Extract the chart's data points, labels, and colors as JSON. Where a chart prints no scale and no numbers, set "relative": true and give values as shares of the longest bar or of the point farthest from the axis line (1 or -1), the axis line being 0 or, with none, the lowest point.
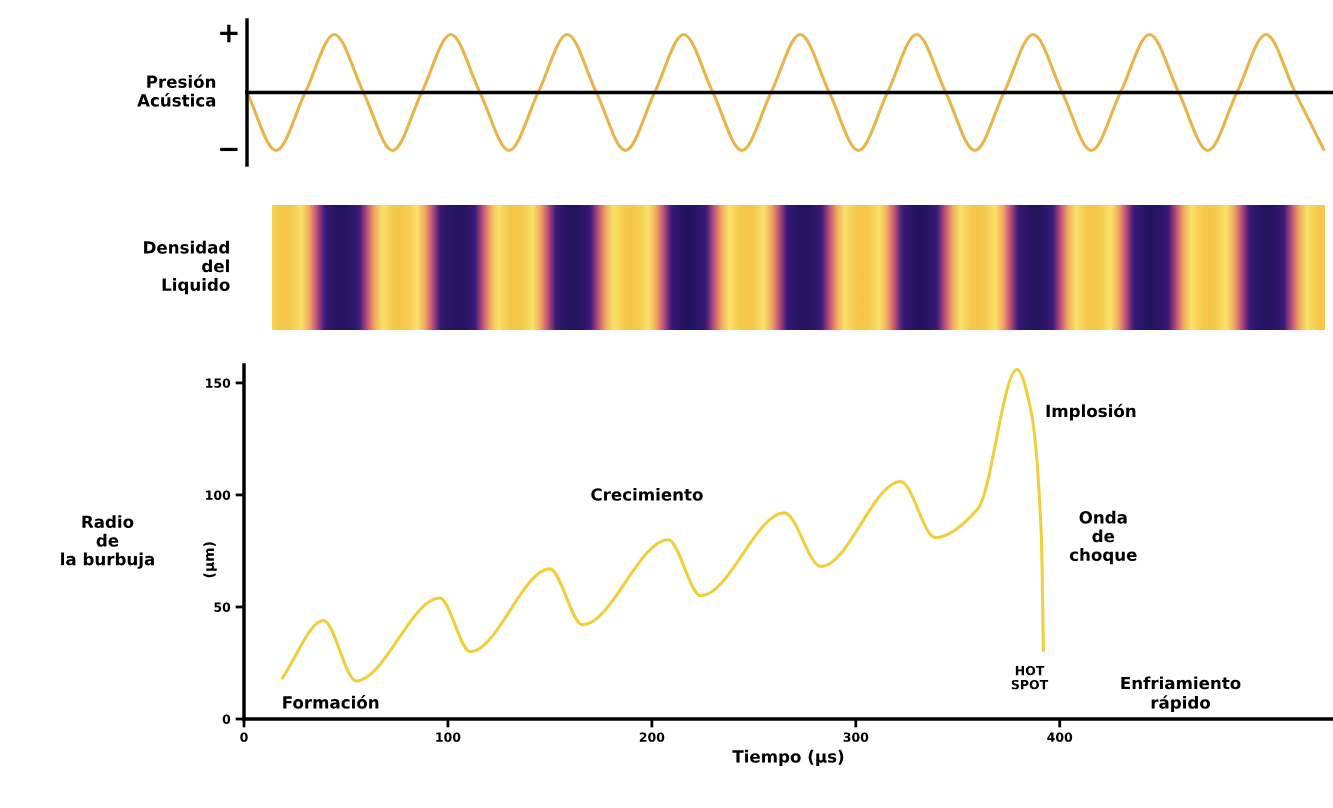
{
  "chart_data": [
    {
      "type": "line",
      "ylabel": "Presión\nAcústica",
      "categories": [
        null,
        null,
        null,
        null,
        null,
        null,
        null,
        null,
        null,
        null,
        null,
        null,
        null,
        null,
        null,
        null,
        null,
        null,
        null,
        null,
        null,
        null,
        null,
        null,
        null,
        null,
        null,
        null,
        null,
        null,
        null,
        null,
        null,
        null,
        null,
        null,
        null,
        null
      ],
      "series": [
        {
          "color": "#e8b44c",
          "values": [
            0,
            -1,
            0,
            1,
            0,
            -1,
            0,
            1,
            0,
            -1,
            0,
            1,
            0,
            -1,
            0,
            1,
            0,
            -1,
            0,
            1,
            0,
            -1,
            0,
            1,
            0,
            -1,
            0,
            1,
            0,
            -1,
            0,
            1,
            0,
            -1,
            0,
            1,
            0,
            -1
          ]
        }
      ],
      "relative": true,
      "annotations": [
        "+",
        "−"
      ],
      "grid": false,
      "legend": false
    },
    {
      "type": "other",
      "ylabel": "Densidad\ndel\nLiquido"
    },
    {
      "type": "line",
      "ylabel": "Radio\nde\nla burbuja",
      "xlabel": "Tiempo (µs)",
      "x": [
        18.5,
        39,
        55,
        96,
        111,
        150,
        166,
        208,
        224,
        265,
        283,
        322,
        339,
        360,
        379,
        386,
        391,
        392
      ],
      "series": [
        {
          "color": "#f0cf3c",
          "values": [
            17.8,
            44,
            17,
            54,
            30,
            67,
            42,
            80,
            55,
            92,
            68,
            106,
            81,
            94,
            156,
            137,
            81,
            30
          ]
        }
      ],
      "xlim": [
        0,
        534
      ],
      "xticks": [
        0,
        100,
        200,
        300,
        400
      ],
      "ylim": [
        0,
        158
      ],
      "yticks": [
        0,
        50,
        100,
        150
      ],
      "grid": false,
      "legend": false,
      "annotations": [
        {
          "text": "Formación",
          "x": 18.5,
          "y": 17.8
        },
        "Crecimiento",
        {
          "text": "Implosión",
          "x": 386,
          "y": 137
        },
        {
          "text": "Onda\nde\nchoque",
          "x": 391,
          "y": 81
        },
        {
          "text": "HOT\nSPOT",
          "x": 392,
          "y": 30
        },
        "Enfriamiento\nrápido",
        "(µm)"
      ]
    }
  ]
}
